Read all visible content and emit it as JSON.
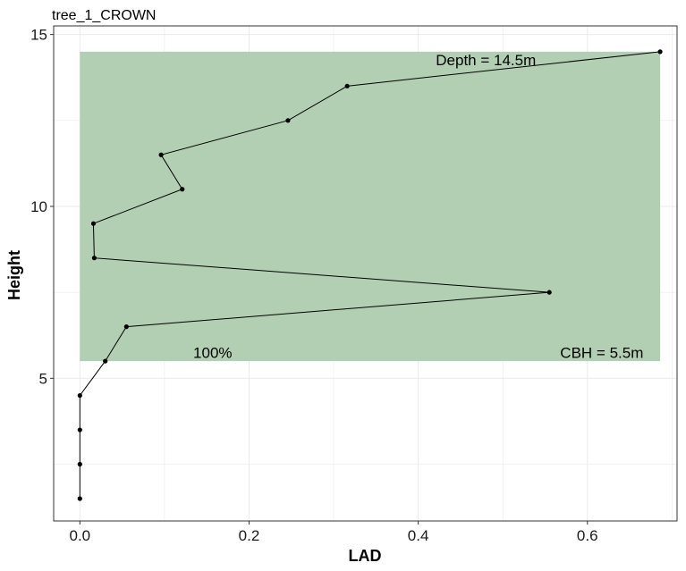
{
  "chart_data": {
    "type": "line",
    "title": "tree_1_CROWN",
    "xlabel": "LAD",
    "ylabel": "Height",
    "xlim": [
      -0.031,
      0.706
    ],
    "ylim": [
      0.85,
      15.25
    ],
    "xticks": [
      0.0,
      0.2,
      0.4,
      0.6
    ],
    "xtick_labels": [
      "0.0",
      "0.2",
      "0.4",
      "0.6"
    ],
    "yticks": [
      5,
      10,
      15
    ],
    "ytick_labels": [
      "5",
      "10",
      "15"
    ],
    "grid": true,
    "series": [
      {
        "x": [
          0.0,
          0.0,
          0.0,
          0.0,
          0.03,
          0.055,
          0.555,
          0.017,
          0.016,
          0.121,
          0.096,
          0.246,
          0.316,
          0.686
        ],
        "y": [
          1.5,
          2.5,
          3.5,
          4.5,
          5.5,
          6.5,
          7.5,
          8.5,
          9.5,
          10.5,
          11.5,
          12.5,
          13.5,
          14.5
        ],
        "color": "#000000"
      }
    ],
    "crown_region": {
      "x": [
        0.0,
        0.686
      ],
      "y": [
        5.5,
        14.5
      ],
      "color": "#b3cfb3"
    },
    "annotations": [
      {
        "text": "Depth = 14.5m",
        "x": 0.48,
        "y": 14.1
      },
      {
        "text": "100%",
        "x": 0.157,
        "y": 5.6
      },
      {
        "text": "CBH = 5.5m",
        "x": 0.617,
        "y": 5.6
      }
    ]
  }
}
